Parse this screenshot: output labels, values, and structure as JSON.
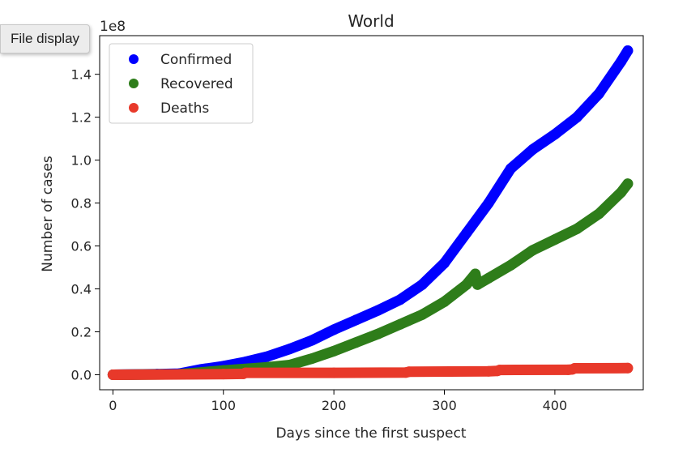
{
  "tooltip": {
    "label": "File display"
  },
  "chart_data": {
    "type": "scatter",
    "title": "World",
    "xlabel": "Days since the first suspect",
    "ylabel": "Number of cases",
    "y_offset_text": "1e8",
    "xlim": [
      -12,
      480
    ],
    "ylim": [
      -0.07,
      1.58
    ],
    "xticks": [
      0,
      100,
      200,
      300,
      400
    ],
    "yticks": [
      0.0,
      0.2,
      0.4,
      0.6,
      0.8,
      1.0,
      1.2,
      1.4
    ],
    "grid": false,
    "legend_position": "top-left",
    "series": [
      {
        "name": "Confirmed",
        "color": "#0000ff",
        "x": [
          0,
          40,
          60,
          80,
          100,
          120,
          140,
          160,
          180,
          200,
          220,
          240,
          260,
          280,
          300,
          320,
          340,
          360,
          380,
          400,
          420,
          440,
          460,
          466
        ],
        "values": [
          0,
          0.003,
          0.005,
          0.025,
          0.04,
          0.06,
          0.085,
          0.12,
          0.16,
          0.21,
          0.255,
          0.3,
          0.35,
          0.42,
          0.52,
          0.66,
          0.8,
          0.96,
          1.05,
          1.12,
          1.2,
          1.31,
          1.46,
          1.51
        ]
      },
      {
        "name": "Recovered",
        "color": "#2e7d1a",
        "x": [
          0,
          60,
          100,
          140,
          160,
          180,
          200,
          220,
          240,
          260,
          280,
          300,
          320,
          328,
          330,
          340,
          360,
          380,
          400,
          420,
          440,
          460,
          466
        ],
        "values": [
          0,
          0.002,
          0.02,
          0.035,
          0.045,
          0.075,
          0.11,
          0.15,
          0.19,
          0.235,
          0.28,
          0.34,
          0.42,
          0.47,
          0.42,
          0.45,
          0.51,
          0.58,
          0.63,
          0.68,
          0.75,
          0.85,
          0.89
        ]
      },
      {
        "name": "Deaths",
        "color": "#e8392a",
        "x": [
          0,
          100,
          118,
          120,
          200,
          265,
          268,
          340,
          348,
          350,
          412,
          416,
          418,
          466
        ],
        "values": [
          0,
          0.003,
          0.004,
          0.009,
          0.009,
          0.01,
          0.014,
          0.016,
          0.018,
          0.022,
          0.023,
          0.025,
          0.03,
          0.031
        ]
      }
    ]
  }
}
